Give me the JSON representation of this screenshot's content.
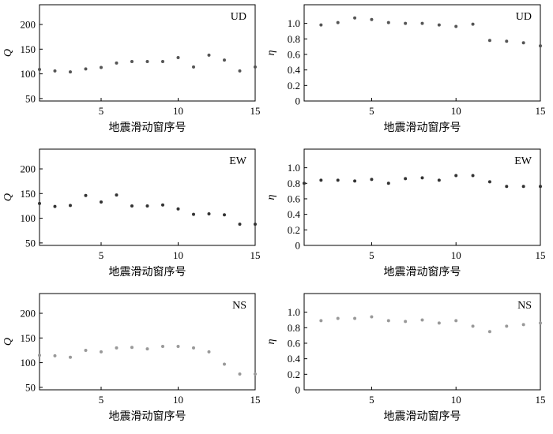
{
  "chart_data": [
    {
      "type": "scatter",
      "component": "UD",
      "ylabel": "Q",
      "xlabel": "地震滑动窗序号",
      "xlim": [
        1,
        15
      ],
      "ylim": [
        45,
        240
      ],
      "xticks": [
        5,
        10,
        15
      ],
      "yticks": [
        50,
        100,
        150,
        200
      ],
      "color": "#555555",
      "x": [
        1,
        2,
        3,
        4,
        5,
        6,
        7,
        8,
        9,
        10,
        11,
        12,
        13,
        14,
        15
      ],
      "values": [
        109,
        106,
        104,
        110,
        113,
        122,
        125,
        125,
        125,
        133,
        114,
        138,
        128,
        106,
        114
      ]
    },
    {
      "type": "scatter",
      "component": "UD",
      "ylabel": "η",
      "xlabel": "地震滑动窗序号",
      "xlim": [
        1,
        15
      ],
      "ylim": [
        0,
        1.24
      ],
      "xticks": [
        5,
        10,
        15
      ],
      "yticks": [
        0,
        0.2,
        0.4,
        0.6,
        0.8,
        1.0
      ],
      "color": "#555555",
      "x": [
        2,
        3,
        4,
        5,
        6,
        7,
        8,
        9,
        10,
        11,
        12,
        13,
        14,
        15
      ],
      "values": [
        0.98,
        1.01,
        1.07,
        1.05,
        1.01,
        1.0,
        1.0,
        0.98,
        0.96,
        0.99,
        0.78,
        0.77,
        0.75,
        0.71
      ]
    },
    {
      "type": "scatter",
      "component": "EW",
      "ylabel": "Q",
      "xlabel": "地震滑动窗序号",
      "xlim": [
        1,
        15
      ],
      "ylim": [
        45,
        240
      ],
      "xticks": [
        5,
        10,
        15
      ],
      "yticks": [
        50,
        100,
        150,
        200
      ],
      "color": "#333333",
      "x": [
        1,
        2,
        3,
        4,
        5,
        6,
        7,
        8,
        9,
        10,
        11,
        12,
        13,
        14,
        15
      ],
      "values": [
        130,
        124,
        126,
        146,
        133,
        147,
        125,
        125,
        127,
        119,
        108,
        109,
        107,
        88,
        88
      ]
    },
    {
      "type": "scatter",
      "component": "EW",
      "ylabel": "η",
      "xlabel": "地震滑动窗序号",
      "xlim": [
        1,
        15
      ],
      "ylim": [
        0,
        1.24
      ],
      "xticks": [
        5,
        10,
        15
      ],
      "yticks": [
        0,
        0.2,
        0.4,
        0.6,
        0.8,
        1.0
      ],
      "color": "#333333",
      "x": [
        1,
        2,
        3,
        4,
        5,
        6,
        7,
        8,
        9,
        10,
        11,
        12,
        13,
        14,
        15
      ],
      "values": [
        0.8,
        0.84,
        0.84,
        0.83,
        0.85,
        0.8,
        0.86,
        0.87,
        0.84,
        0.9,
        0.9,
        0.82,
        0.76,
        0.76,
        0.76
      ]
    },
    {
      "type": "scatter",
      "component": "NS",
      "ylabel": "Q",
      "xlabel": "地震滑动窗序号",
      "xlim": [
        1,
        15
      ],
      "ylim": [
        45,
        240
      ],
      "xticks": [
        5,
        10,
        15
      ],
      "yticks": [
        50,
        100,
        150,
        200
      ],
      "color": "#999999",
      "x": [
        1,
        2,
        3,
        4,
        5,
        6,
        7,
        8,
        9,
        10,
        11,
        12,
        13,
        14,
        15
      ],
      "values": [
        115,
        114,
        111,
        125,
        122,
        130,
        131,
        128,
        133,
        133,
        130,
        122,
        97,
        77,
        77
      ]
    },
    {
      "type": "scatter",
      "component": "NS",
      "ylabel": "η",
      "xlabel": "地震滑动窗序号",
      "xlim": [
        1,
        15
      ],
      "ylim": [
        0,
        1.24
      ],
      "xticks": [
        5,
        10,
        15
      ],
      "yticks": [
        0,
        0.2,
        0.4,
        0.6,
        0.8,
        1.0
      ],
      "color": "#999999",
      "x": [
        2,
        3,
        4,
        5,
        6,
        7,
        8,
        9,
        10,
        11,
        12,
        13,
        14,
        15
      ],
      "values": [
        0.89,
        0.92,
        0.92,
        0.94,
        0.89,
        0.88,
        0.9,
        0.86,
        0.89,
        0.82,
        0.75,
        0.82,
        0.84,
        0.86
      ]
    }
  ]
}
